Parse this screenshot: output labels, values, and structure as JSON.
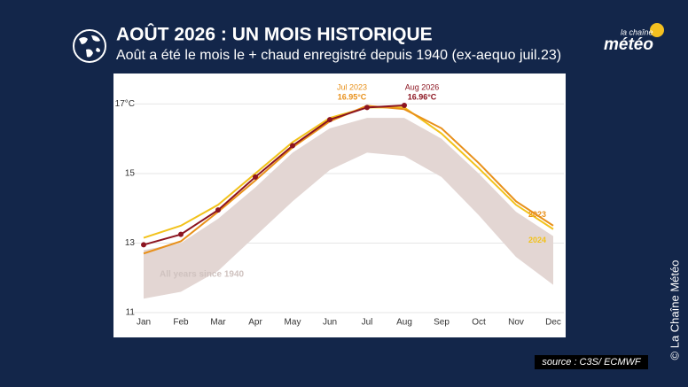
{
  "header": {
    "title": "AOÛT 2026 : UN MOIS HISTORIQUE",
    "subtitle": "Août a été le mois le + chaud enregistré depuis 1940 (ex-aequo juil.23)",
    "logo_top": "la chaîne",
    "logo_main": "météo"
  },
  "chart_data": {
    "type": "line",
    "categories": [
      "Jan",
      "Feb",
      "Mar",
      "Apr",
      "May",
      "Jun",
      "Jul",
      "Aug",
      "Sep",
      "Oct",
      "Nov",
      "Dec"
    ],
    "range": {
      "name": "All years since 1940",
      "color": "#e3d6d3",
      "low": [
        11.4,
        11.6,
        12.2,
        13.2,
        14.2,
        15.1,
        15.6,
        15.5,
        14.9,
        13.8,
        12.6,
        11.8
      ],
      "high": [
        12.8,
        13.0,
        13.7,
        14.6,
        15.6,
        16.3,
        16.6,
        16.6,
        16.0,
        15.0,
        13.9,
        13.2
      ]
    },
    "series": [
      {
        "name": "2024",
        "color": "#f2c21b",
        "values": [
          13.15,
          13.5,
          14.1,
          15.0,
          15.9,
          16.6,
          16.9,
          16.9,
          16.15,
          15.15,
          14.1,
          13.4
        ]
      },
      {
        "name": "2023",
        "color": "#e8901a",
        "values": [
          12.7,
          13.05,
          13.9,
          14.8,
          15.75,
          16.5,
          16.95,
          16.85,
          16.3,
          15.3,
          14.2,
          13.5
        ]
      },
      {
        "color": "#8c1420",
        "markers": true,
        "values": [
          12.95,
          13.25,
          13.95,
          14.9,
          15.8,
          16.55,
          16.9,
          16.96,
          null,
          null,
          null,
          null
        ]
      }
    ],
    "annotations": [
      {
        "label": "Jul 2023",
        "value_label": "16.95°C",
        "color": "#e8901a"
      },
      {
        "label": "Aug 2026",
        "value_label": "16.96°C",
        "color": "#8c1420"
      }
    ],
    "ylim": [
      11,
      17.8
    ],
    "yticks": [
      11,
      13,
      15,
      {
        "value": 17,
        "label": "17°C"
      }
    ],
    "grid": true
  },
  "footer": {
    "source": "source : C3S/ ECMWF",
    "credit": "© La Chaîne Météo"
  }
}
